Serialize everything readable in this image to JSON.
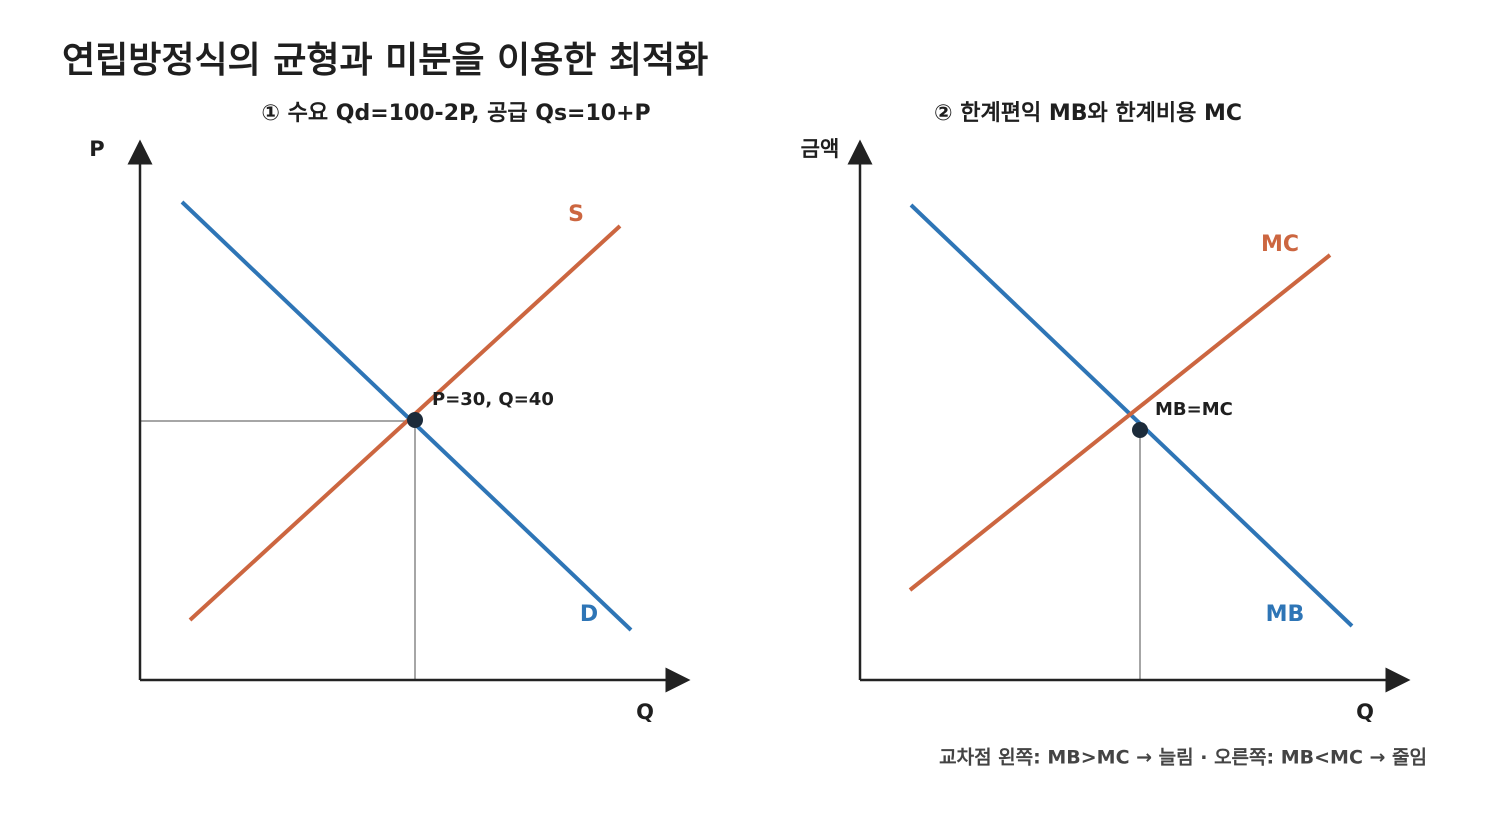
{
  "title": "연립방정식의 균형과 미분을 이용한 최적화",
  "panels": [
    {
      "title": "① 수요 Qd=100-2P, 공급 Qs=10+P",
      "y_axis_label": "P",
      "x_axis_label": "Q",
      "supply_label": "S",
      "demand_label": "D",
      "point_label": "P=30, Q=40"
    },
    {
      "title": "② 한계편익 MB와 한계비용 MC",
      "y_axis_label": "금액",
      "x_axis_label": "Q",
      "cost_label": "MC",
      "benefit_label": "MB",
      "point_label": "MB=MC"
    }
  ],
  "footnote": "교차점 왼쪽: MB>MC → 늘림 · 오른쪽: MB<MC → 줄임"
}
